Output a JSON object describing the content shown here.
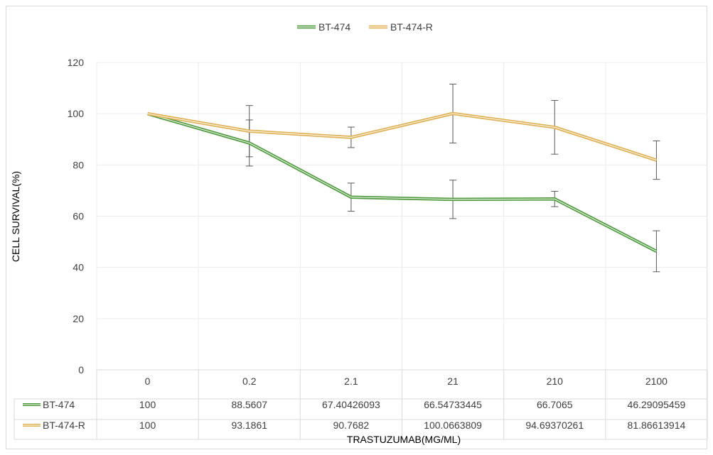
{
  "chart_data": {
    "type": "line",
    "xlabel": "TRASTUZUMAB(MG/ML)",
    "ylabel": "CELL SURVIVAL(%)",
    "ylim": [
      0,
      120
    ],
    "yticks": [
      "0",
      "20",
      "40",
      "60",
      "80",
      "100",
      "120"
    ],
    "categories": [
      "0",
      "0.2",
      "2.1",
      "21",
      "210",
      "2100"
    ],
    "legend_position": "top-center",
    "data_table": true,
    "series": [
      {
        "name": "BT-474",
        "color": "#4e9a3c",
        "values": [
          100,
          88.5607,
          67.40426093,
          66.54733445,
          66.7065,
          46.29095459
        ],
        "labels": [
          "100",
          "88.5607",
          "67.40426093",
          "66.54733445",
          "66.7065",
          "46.29095459"
        ],
        "error": [
          0,
          9,
          5.5,
          7.5,
          3,
          8
        ]
      },
      {
        "name": "BT-474-R",
        "color": "#e0b052",
        "values": [
          100,
          93.1861,
          90.7682,
          100.0663809,
          94.69370261,
          81.86613914
        ],
        "labels": [
          "100",
          "93.1861",
          "90.7682",
          "100.0663809",
          "94.69370261",
          "81.86613914"
        ],
        "error": [
          0,
          10,
          4,
          11.5,
          10.5,
          7.5
        ]
      }
    ]
  }
}
